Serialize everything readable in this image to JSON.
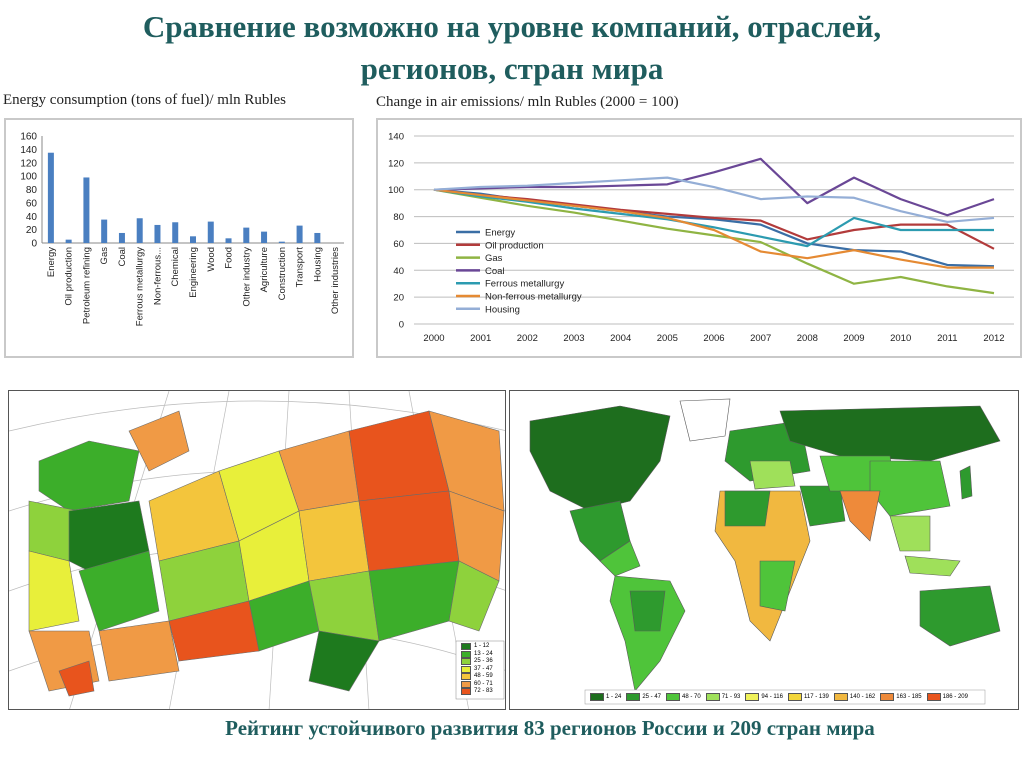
{
  "slide": {
    "title_line1": "Сравнение возможно на уровне компаний, отраслей,",
    "title_line2": "регионов, стран мира",
    "caption": "Рейтинг устойчивого развития 83 регионов России и 209 стран мира"
  },
  "chart_data": [
    {
      "type": "bar",
      "title": "Energy consumption (tons of fuel)/ mln Rubles",
      "categories": [
        "Energy",
        "Oil production",
        "Petroleum refining",
        "Gas",
        "Coal",
        "Ferrous metallurgy",
        "Non-ferrous...",
        "Chemical",
        "Engineering",
        "Wood",
        "Food",
        "Other industry",
        "Agriculture",
        "Construction",
        "Transport",
        "Housing",
        "Other industries"
      ],
      "values": [
        135,
        5,
        98,
        35,
        15,
        37,
        27,
        31,
        10,
        32,
        7,
        23,
        17,
        2,
        26,
        15,
        0
      ],
      "ylim": [
        0,
        160
      ],
      "yticks": [
        "0",
        "20",
        "40",
        "60",
        "80",
        "100",
        "120",
        "140",
        "160"
      ],
      "color": "#4a7fc1",
      "grid": false
    },
    {
      "type": "line",
      "title": "Change in air emissions/ mln Rubles (2000 = 100)",
      "x": [
        "2000",
        "2001",
        "2002",
        "2003",
        "2004",
        "2005",
        "2006",
        "2007",
        "2008",
        "2009",
        "2010",
        "2011",
        "2012"
      ],
      "ylim": [
        0,
        140
      ],
      "yticks": [
        "0",
        "20",
        "40",
        "60",
        "80",
        "100",
        "120",
        "140"
      ],
      "grid": true,
      "legend_position": "left-bottom",
      "series": [
        {
          "name": "Energy",
          "color": "#3a6ea5",
          "values": [
            100,
            97,
            92,
            88,
            84,
            80,
            78,
            74,
            60,
            55,
            54,
            44,
            43
          ]
        },
        {
          "name": "Oil production",
          "color": "#b23b3b",
          "values": [
            100,
            96,
            93,
            89,
            85,
            82,
            79,
            77,
            63,
            70,
            74,
            74,
            56
          ]
        },
        {
          "name": "Gas",
          "color": "#8fb443",
          "values": [
            100,
            94,
            88,
            83,
            77,
            71,
            66,
            61,
            45,
            30,
            35,
            28,
            23
          ]
        },
        {
          "name": "Coal",
          "color": "#6a4796",
          "values": [
            100,
            101,
            102,
            102,
            103,
            104,
            113,
            123,
            90,
            109,
            93,
            81,
            93
          ]
        },
        {
          "name": "Ferrous metallurgy",
          "color": "#2c9bb0",
          "values": [
            100,
            95,
            91,
            86,
            82,
            78,
            72,
            65,
            58,
            79,
            70,
            70,
            70
          ]
        },
        {
          "name": "Non-ferrous metallurgy",
          "color": "#e58a33",
          "values": [
            100,
            96,
            92,
            88,
            84,
            79,
            70,
            54,
            49,
            55,
            48,
            42,
            42
          ]
        },
        {
          "name": "Housing",
          "color": "#94aed6",
          "values": [
            100,
            102,
            103,
            105,
            107,
            109,
            102,
            93,
            95,
            94,
            84,
            76,
            79
          ]
        }
      ]
    }
  ],
  "russia_map": {
    "legend": [
      {
        "label": "1 - 12",
        "color": "#1e7a1e"
      },
      {
        "label": "13 - 24",
        "color": "#3cae2a"
      },
      {
        "label": "25 - 36",
        "color": "#8ed23c"
      },
      {
        "label": "37 - 47",
        "color": "#e8ef3a"
      },
      {
        "label": "48 - 59",
        "color": "#f3c53c"
      },
      {
        "label": "60 - 71",
        "color": "#f09a45"
      },
      {
        "label": "72 - 83",
        "color": "#e8541d"
      }
    ]
  },
  "world_map": {
    "legend": [
      {
        "label": "1 - 24",
        "color": "#1e6e1e"
      },
      {
        "label": "25 - 47",
        "color": "#2e9a2e"
      },
      {
        "label": "48 - 70",
        "color": "#4fc43a"
      },
      {
        "label": "71 - 93",
        "color": "#9fe05a"
      },
      {
        "label": "94 - 116",
        "color": "#f0f25a"
      },
      {
        "label": "117 - 139",
        "color": "#f3d63a"
      },
      {
        "label": "140 - 162",
        "color": "#f1b840"
      },
      {
        "label": "163 - 185",
        "color": "#ee8a3a"
      },
      {
        "label": "186 - 209",
        "color": "#e8541d"
      }
    ]
  }
}
